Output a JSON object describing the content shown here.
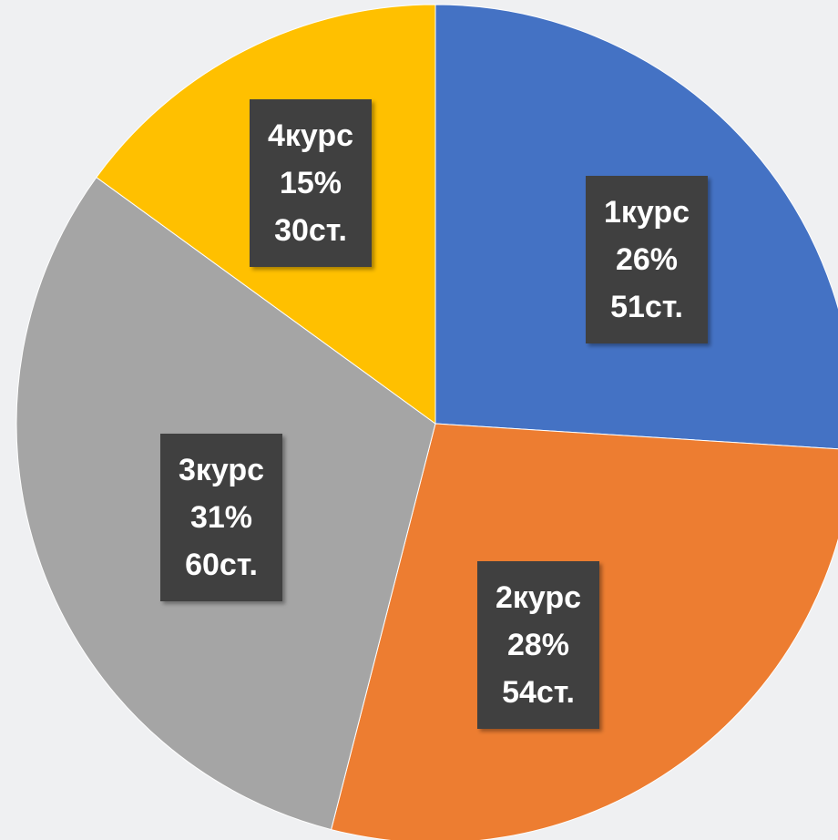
{
  "chart_data": {
    "type": "pie",
    "categories": [
      "1курс",
      "2курс",
      "3курс",
      "4курс"
    ],
    "values": [
      26,
      28,
      31,
      15
    ],
    "value_labels": [
      "26%",
      "28%",
      "31%",
      "15%"
    ],
    "counts": [
      51,
      54,
      60,
      30
    ],
    "count_labels": [
      "51ст.",
      "54ст.",
      "60ст.",
      "30ст."
    ],
    "colors": [
      "#4472c4",
      "#ed7d31",
      "#a5a5a5",
      "#ffc000"
    ]
  }
}
